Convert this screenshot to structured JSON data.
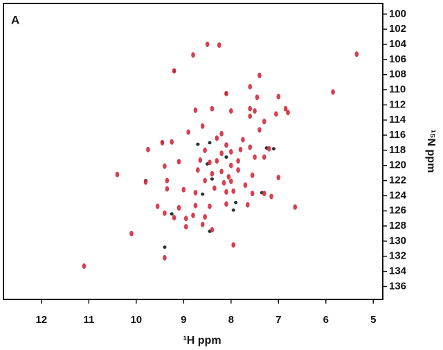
{
  "chart_data": {
    "type": "scatter",
    "panel_label": "A",
    "x_label": "¹H ppm",
    "y_label": "¹⁵N ppm",
    "xlim": [
      12.8,
      4.8
    ],
    "ylim": [
      137.7,
      98.6
    ],
    "xticks": [
      12,
      11,
      10,
      9,
      8,
      7,
      6,
      5
    ],
    "yticks": [
      100,
      102,
      104,
      106,
      108,
      110,
      112,
      114,
      116,
      118,
      120,
      122,
      124,
      126,
      128,
      130,
      132,
      134,
      136
    ],
    "series": [
      {
        "color": "#1a1a1a",
        "x": [
          8.1,
          9.2,
          9.45,
          8.5,
          8.45,
          9.4,
          8.4,
          7.35,
          9.25,
          7.9,
          8.45,
          8.7,
          7.1,
          9.8,
          8.1,
          7.95,
          7.25,
          8.6
        ],
        "y": [
          110.5,
          107.5,
          116.9,
          119.8,
          117.0,
          130.8,
          121.8,
          123.6,
          126.4,
          124.9,
          128.7,
          117.2,
          117.8,
          122.0,
          118.9,
          125.9,
          117.7,
          123.8
        ]
      },
      {
        "color": "#d42a3c",
        "x": [
          8.5,
          8.25,
          8.8,
          5.35,
          9.2,
          7.4,
          5.85,
          7.6,
          8.1,
          7.45,
          7.0,
          7.6,
          7.5,
          6.85,
          6.8,
          7.05,
          8.75,
          8.4,
          8.0,
          7.6,
          7.3,
          7.4,
          8.6,
          8.9,
          8.2,
          8.3,
          7.75,
          9.45,
          9.25,
          9.75,
          8.1,
          8.2,
          8.55,
          8.0,
          7.8,
          7.6,
          7.2,
          8.65,
          8.45,
          8.3,
          8.0,
          7.85,
          7.5,
          7.3,
          9.1,
          9.4,
          8.7,
          8.4,
          8.2,
          8.05,
          7.85,
          7.55,
          7.0,
          10.4,
          9.8,
          9.35,
          8.55,
          8.15,
          8.0,
          7.7,
          8.35,
          7.95,
          7.55,
          7.3,
          7.15,
          9.35,
          9.0,
          8.75,
          8.1,
          9.55,
          9.1,
          8.75,
          8.45,
          8.1,
          7.65,
          6.65,
          9.4,
          8.8,
          9.2,
          8.95,
          8.55,
          8.6,
          8.4,
          8.95,
          10.1,
          9.4,
          11.1,
          7.95
        ],
        "y": [
          104.0,
          104.1,
          105.4,
          105.3,
          107.5,
          108.1,
          110.3,
          109.6,
          110.5,
          111.0,
          110.9,
          112.5,
          112.8,
          112.5,
          113.0,
          113.2,
          112.7,
          112.5,
          112.8,
          113.5,
          114.2,
          115.3,
          114.8,
          115.6,
          115.8,
          116.4,
          116.6,
          117.0,
          116.9,
          117.9,
          117.3,
          118.4,
          118.0,
          118.2,
          117.9,
          117.6,
          117.8,
          119.3,
          119.6,
          119.4,
          120.0,
          119.4,
          118.9,
          118.9,
          119.5,
          120.1,
          120.6,
          121.1,
          120.8,
          121.5,
          120.6,
          121.3,
          121.6,
          121.2,
          122.2,
          122.0,
          122.0,
          122.3,
          122.1,
          122.6,
          123.0,
          123.4,
          123.7,
          123.7,
          124.1,
          123.1,
          123.2,
          123.6,
          123.5,
          125.4,
          125.6,
          125.3,
          125.4,
          125.1,
          125.2,
          125.5,
          126.3,
          126.6,
          126.9,
          127.0,
          126.8,
          127.8,
          128.5,
          128.1,
          129.0,
          132.2,
          133.3,
          130.5
        ]
      }
    ]
  }
}
